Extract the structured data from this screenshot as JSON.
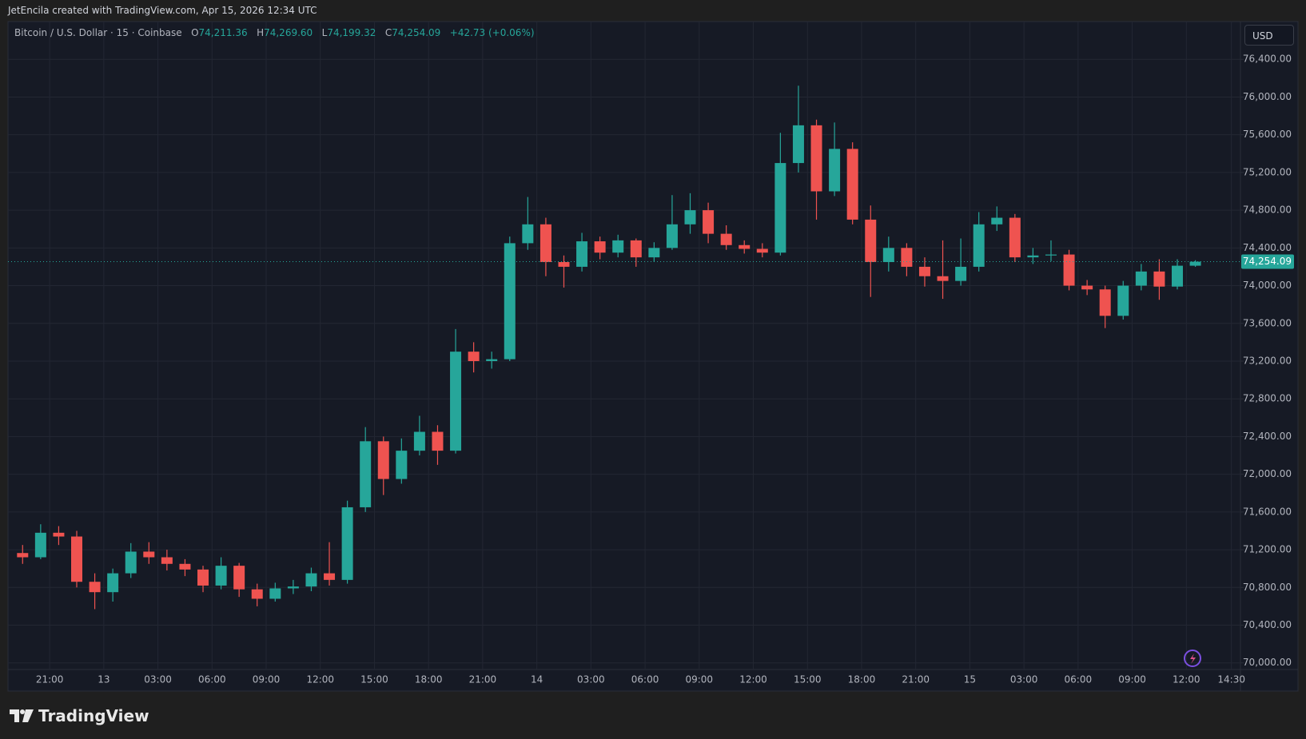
{
  "attribution": "JetEncila created with TradingView.com, Apr 15, 2026 12:34 UTC",
  "brand": "TradingView",
  "currency": "USD",
  "chart_data": {
    "type": "candlestick",
    "title": "Bitcoin / U.S. Dollar · 15 · Coinbase",
    "ohlc": {
      "o_label": "O",
      "o": "74,211.36",
      "h_label": "H",
      "h": "74,269.60",
      "l_label": "L",
      "l": "74,199.32",
      "c_label": "C",
      "c": "74,254.09",
      "change": "+42.73 (+0.06%)"
    },
    "up_color": "#26a69a",
    "down_color": "#ef5350",
    "candles": [
      [
        -4.5,
        71165,
        71250,
        71050,
        71120
      ],
      [
        -3.5,
        71120,
        71470,
        71100,
        71380
      ],
      [
        -2.5,
        71380,
        71450,
        71250,
        71340
      ],
      [
        -1.5,
        71340,
        71400,
        70800,
        70860
      ],
      [
        -0.5,
        70860,
        70950,
        70570,
        70750
      ],
      [
        0.5,
        70750,
        71000,
        70650,
        70950
      ],
      [
        1.5,
        70950,
        71270,
        70900,
        71180
      ],
      [
        2.5,
        71180,
        71280,
        71050,
        71120
      ],
      [
        3.5,
        71120,
        71200,
        70980,
        71050
      ],
      [
        4.5,
        71050,
        71100,
        70920,
        70990
      ],
      [
        5.5,
        70990,
        71030,
        70750,
        70820
      ],
      [
        6.5,
        70820,
        71120,
        70780,
        71030
      ],
      [
        7.5,
        71030,
        71060,
        70700,
        70780
      ],
      [
        8.5,
        70780,
        70840,
        70600,
        70680
      ],
      [
        9.5,
        70680,
        70850,
        70650,
        70790
      ],
      [
        10.5,
        70790,
        70880,
        70730,
        70810
      ],
      [
        11.5,
        70810,
        71010,
        70760,
        70950
      ],
      [
        12.5,
        70950,
        71280,
        70820,
        70880
      ],
      [
        13.5,
        70880,
        71720,
        70840,
        71650
      ],
      [
        14.5,
        71650,
        72500,
        71600,
        72350
      ],
      [
        15.5,
        72350,
        72400,
        71780,
        71950
      ],
      [
        16.5,
        71950,
        72380,
        71900,
        72250
      ],
      [
        17.5,
        72250,
        72620,
        72200,
        72450
      ],
      [
        18.5,
        72450,
        72520,
        72100,
        72250
      ],
      [
        19.5,
        72250,
        73540,
        72220,
        73300
      ],
      [
        20.5,
        73300,
        73400,
        73080,
        73200
      ],
      [
        21.5,
        73200,
        73300,
        73120,
        73220
      ],
      [
        22.5,
        73220,
        74520,
        73200,
        74450
      ],
      [
        23.5,
        74450,
        74940,
        74380,
        74650
      ],
      [
        24.5,
        74650,
        74720,
        74100,
        74250
      ],
      [
        25.5,
        74250,
        74320,
        73980,
        74200
      ],
      [
        26.5,
        74200,
        74560,
        74150,
        74470
      ],
      [
        27.5,
        74470,
        74520,
        74280,
        74350
      ],
      [
        28.5,
        74350,
        74540,
        74300,
        74480
      ],
      [
        29.5,
        74480,
        74500,
        74200,
        74300
      ],
      [
        30.5,
        74300,
        74460,
        74250,
        74400
      ],
      [
        31.5,
        74400,
        74960,
        74380,
        74650
      ],
      [
        32.5,
        74650,
        74980,
        74550,
        74800
      ],
      [
        33.5,
        74800,
        74880,
        74450,
        74550
      ],
      [
        34.5,
        74550,
        74640,
        74380,
        74430
      ],
      [
        35.5,
        74430,
        74480,
        74340,
        74390
      ],
      [
        36.5,
        74390,
        74450,
        74300,
        74350
      ],
      [
        37.5,
        74350,
        75620,
        74320,
        75300
      ],
      [
        38.5,
        75300,
        76120,
        75200,
        75700
      ],
      [
        39.5,
        75700,
        75760,
        74700,
        75000
      ],
      [
        40.5,
        75000,
        75730,
        74950,
        75450
      ],
      [
        41.5,
        75450,
        75520,
        74650,
        74700
      ],
      [
        42.5,
        74700,
        74850,
        73880,
        74250
      ],
      [
        43.5,
        74250,
        74520,
        74150,
        74400
      ],
      [
        44.5,
        74400,
        74450,
        74100,
        74200
      ],
      [
        45.5,
        74200,
        74300,
        73990,
        74100
      ],
      [
        46.5,
        74100,
        74480,
        73860,
        74050
      ],
      [
        47.5,
        74050,
        74500,
        74000,
        74200
      ],
      [
        48.5,
        74200,
        74780,
        74150,
        74650
      ],
      [
        49.5,
        74650,
        74840,
        74580,
        74720
      ],
      [
        50.5,
        74720,
        74760,
        74250,
        74300
      ],
      [
        51.5,
        74300,
        74400,
        74230,
        74320
      ],
      [
        52.5,
        74320,
        74480,
        74260,
        74330
      ],
      [
        53.5,
        74330,
        74380,
        73950,
        74000
      ],
      [
        54.5,
        74000,
        74060,
        73900,
        73960
      ],
      [
        55.5,
        73960,
        74000,
        73550,
        73680
      ],
      [
        56.5,
        73680,
        74050,
        73640,
        74000
      ],
      [
        57.5,
        74000,
        74230,
        73950,
        74150
      ],
      [
        58.5,
        74150,
        74280,
        73850,
        73990
      ],
      [
        59.5,
        73990,
        74280,
        73960,
        74211.36
      ],
      [
        60.5,
        74211.36,
        74269.6,
        74199.32,
        74254.09
      ]
    ],
    "last_price": {
      "value": 74254.09,
      "label": "74,254.09"
    },
    "xlim": [
      -5.31,
      63
    ],
    "xticks": [
      {
        "value": -3,
        "label": "21:00"
      },
      {
        "value": 0,
        "label": "13"
      },
      {
        "value": 3,
        "label": "03:00"
      },
      {
        "value": 6,
        "label": "06:00"
      },
      {
        "value": 9,
        "label": "09:00"
      },
      {
        "value": 12,
        "label": "12:00"
      },
      {
        "value": 15,
        "label": "15:00"
      },
      {
        "value": 18,
        "label": "18:00"
      },
      {
        "value": 21,
        "label": "21:00"
      },
      {
        "value": 24,
        "label": "14"
      },
      {
        "value": 27,
        "label": "03:00"
      },
      {
        "value": 30,
        "label": "06:00"
      },
      {
        "value": 33,
        "label": "09:00"
      },
      {
        "value": 36,
        "label": "12:00"
      },
      {
        "value": 39,
        "label": "15:00"
      },
      {
        "value": 42,
        "label": "18:00"
      },
      {
        "value": 45,
        "label": "21:00"
      },
      {
        "value": 48,
        "label": "15"
      },
      {
        "value": 51,
        "label": "03:00"
      },
      {
        "value": 54,
        "label": "06:00"
      },
      {
        "value": 57,
        "label": "09:00"
      },
      {
        "value": 60,
        "label": "12:00"
      },
      {
        "value": 62.5,
        "label": "14:30"
      }
    ],
    "ylim": [
      69930,
      76800
    ],
    "yticks": [
      {
        "value": 70000,
        "label": "70,000.00"
      },
      {
        "value": 70400,
        "label": "70,400.00"
      },
      {
        "value": 70800,
        "label": "70,800.00"
      },
      {
        "value": 71200,
        "label": "71,200.00"
      },
      {
        "value": 71600,
        "label": "71,600.00"
      },
      {
        "value": 72000,
        "label": "72,000.00"
      },
      {
        "value": 72400,
        "label": "72,400.00"
      },
      {
        "value": 72800,
        "label": "72,800.00"
      },
      {
        "value": 73200,
        "label": "73,200.00"
      },
      {
        "value": 73600,
        "label": "73,600.00"
      },
      {
        "value": 74000,
        "label": "74,000.00"
      },
      {
        "value": 74400,
        "label": "74,400.00"
      },
      {
        "value": 74800,
        "label": "74,800.00"
      },
      {
        "value": 75200,
        "label": "75,200.00"
      },
      {
        "value": 75600,
        "label": "75,600.00"
      },
      {
        "value": 76000,
        "label": "76,000.00"
      },
      {
        "value": 76400,
        "label": "76,400.00"
      }
    ],
    "grid": true
  }
}
